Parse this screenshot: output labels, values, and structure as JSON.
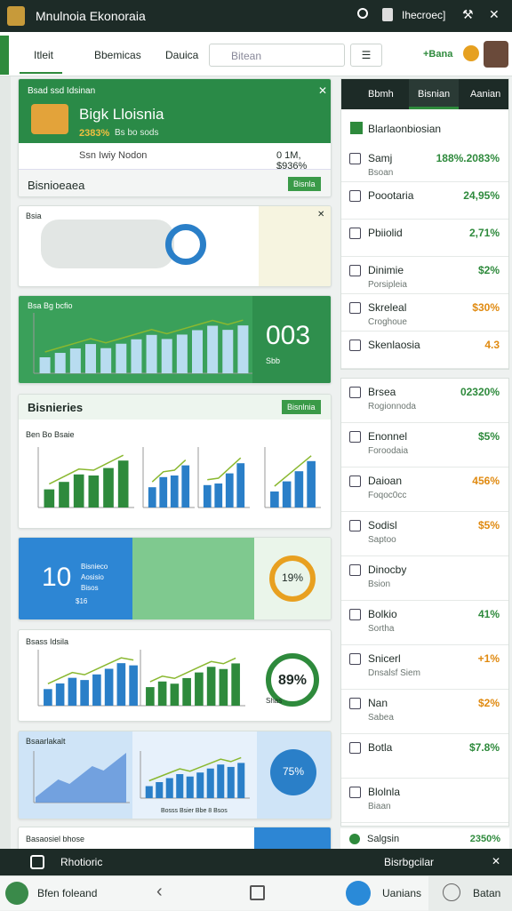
{
  "header": {
    "title": "Mnulnoia Ekonoraia",
    "account": "Ihecroec]",
    "tabs": [
      "Itleit",
      "Bbemicas",
      "Dauica"
    ],
    "search": "Bitean",
    "badge": "+Bana"
  },
  "cards": {
    "hero": {
      "kicker": "Bsad ssd Idsinan",
      "title": "Bigk Lloisnia",
      "stat": "2383%",
      "stat_note": "Bs bo sods",
      "row_label": "Ssn Iwiy Nodon",
      "row_value": "0 1M, $936%",
      "footer": "Bisnioeaea",
      "button": "Bisnla"
    },
    "map": {
      "label": "Bsia"
    },
    "trend": {
      "label": "Bsa Bg bcfio",
      "big": "003",
      "big_note": "Sbb"
    },
    "business": {
      "title": "Bisnieries",
      "button": "Bisnlnia",
      "sub": "Ben Bo Bsaie"
    },
    "blue": {
      "big": "10",
      "note1": "Bisnieco",
      "note2": "Aosisio",
      "note3": "Bisos",
      "note4": "$16",
      "donut": "19%"
    },
    "growth": {
      "label": "Bsass Idsila",
      "donut": "89%",
      "note": "Shas"
    },
    "blue2": {
      "label": "Bsaarlakalt",
      "donut": "75%",
      "note": "Bosss Bsier Bbe 8 Bsos"
    },
    "last": {
      "label": "Basaosiel bhose"
    }
  },
  "panel": {
    "tabs": [
      "Bbmh",
      "Bisnian",
      "Aanian"
    ],
    "title": "Blarlaonbiosian",
    "items": [
      {
        "label": "Samj",
        "sub": "Bsoan",
        "value": "188%.2083%",
        "color": "#2e8a3c"
      },
      {
        "label": "Poootaria",
        "value": "24,95%",
        "color": "#2e8a3c"
      },
      {
        "label": "Pbiiolid",
        "value": "2,71%",
        "color": "#2e8a3c"
      },
      {
        "label": "Dinimie",
        "sub": "Porsipleia",
        "value": "$2%",
        "color": "#2e8a3c"
      },
      {
        "label": "Skreleal",
        "sub": "Croghoue",
        "value": "$30%",
        "color": "#e08a10"
      },
      {
        "label": "Skenlaosia",
        "value": "4.3",
        "color": "#e08a10"
      }
    ],
    "items2": [
      {
        "label": "Brsea",
        "sub": "Rogionnoda",
        "value": "02320%",
        "color": "#2e8a3c"
      },
      {
        "label": "Enonnel",
        "sub": "Foroodaia",
        "value": "$5%",
        "color": "#2e8a3c"
      },
      {
        "label": "Daioan",
        "sub": "Foqoc0cc",
        "value": "456%",
        "color": "#e08a10"
      },
      {
        "label": "Sodisl",
        "sub": "Saptoo",
        "value": "$5%",
        "color": "#e08a10"
      },
      {
        "label": "Dinocby",
        "sub": "Bsion",
        "value": "",
        "color": "#2e8a3c"
      },
      {
        "label": "Bolkio",
        "sub": "Sortha",
        "value": "41%",
        "color": "#2e8a3c"
      },
      {
        "label": "Snicerl",
        "sub": "Dnsalsf Siem",
        "value": "+1%",
        "color": "#e08a10"
      },
      {
        "label": "Nan",
        "sub": "Sabea",
        "value": "$2%",
        "color": "#e08a10"
      },
      {
        "label": "Botla",
        "value": "$7.8%",
        "color": "#2e8a3c"
      },
      {
        "label": "Blolnla",
        "sub": "Biaan",
        "value": "",
        "color": "#2e8a3c"
      }
    ],
    "footer_label": "Salgsin",
    "footer_value": "2350%"
  },
  "bottom": {
    "bar_left": "Rhotioric",
    "bar_right": "Bisrbgcilar",
    "nav_left": "Bfen foleand",
    "nav_mid": "Uanians",
    "nav_right": "Batan"
  }
}
